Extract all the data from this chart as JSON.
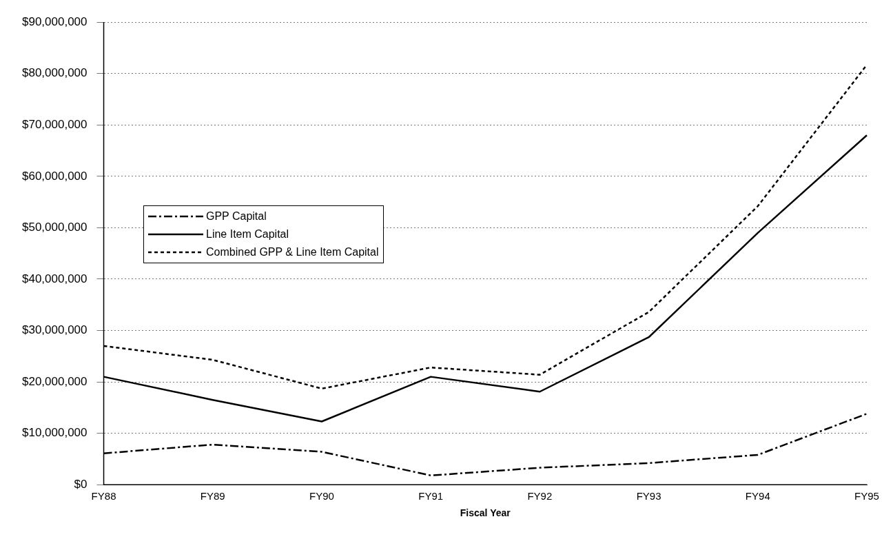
{
  "chart_data": {
    "type": "line",
    "xlabel": "Fiscal Year",
    "categories": [
      "FY88",
      "FY89",
      "FY90",
      "FY91",
      "FY92",
      "FY93",
      "FY94",
      "FY95"
    ],
    "series": [
      {
        "name": "GPP Capital",
        "color": "#000000",
        "line_style": "dashed",
        "values": [
          6100000,
          7800000,
          6400000,
          1800000,
          3300000,
          4200000,
          5800000,
          13800000
        ]
      },
      {
        "name": "Line Item Capital",
        "color": "#000000",
        "line_style": "solid",
        "values": [
          21000000,
          16500000,
          12300000,
          21000000,
          18100000,
          28700000,
          49000000,
          68000000
        ]
      },
      {
        "name": "Combined GPP & Line Item Capital",
        "color": "#000000",
        "line_style": "dotted",
        "values": [
          27000000,
          24300000,
          18700000,
          22800000,
          21400000,
          33600000,
          54200000,
          81700000
        ]
      }
    ],
    "ylim": [
      0,
      90000000
    ],
    "yticks": [
      {
        "value": 0,
        "label": "$0"
      },
      {
        "value": 10000000,
        "label": "$10,000,000"
      },
      {
        "value": 20000000,
        "label": "$20,000,000"
      },
      {
        "value": 30000000,
        "label": "$30,000,000"
      },
      {
        "value": 40000000,
        "label": "$40,000,000"
      },
      {
        "value": 50000000,
        "label": "$50,000,000"
      },
      {
        "value": 60000000,
        "label": "$60,000,000"
      },
      {
        "value": 70000000,
        "label": "$70,000,000"
      },
      {
        "value": 80000000,
        "label": "$80,000,000"
      },
      {
        "value": 90000000,
        "label": "$90,000,000"
      }
    ],
    "grid": "y",
    "legend": "left",
    "marker": "none"
  }
}
